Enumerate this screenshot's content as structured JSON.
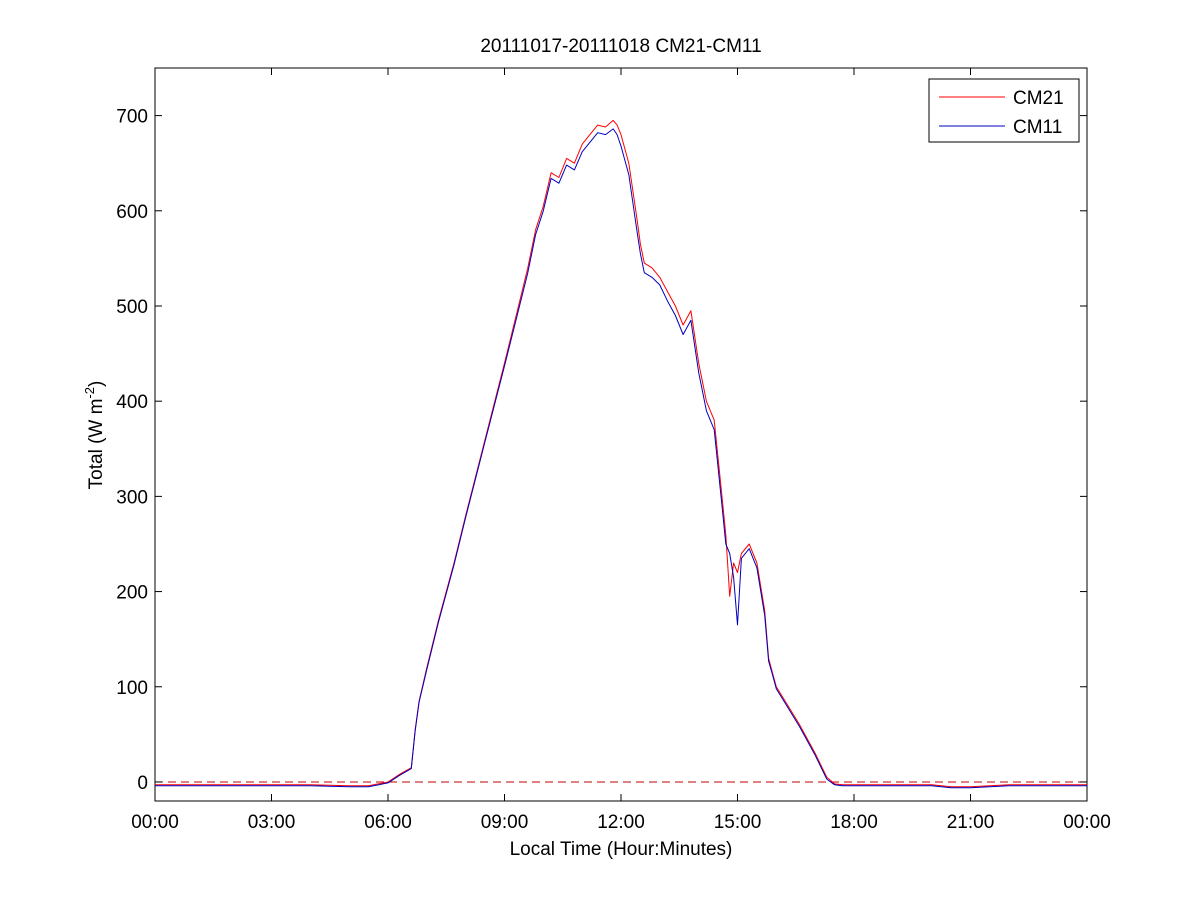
{
  "figure": {
    "title": "20111017-20111018 CM21-CM11",
    "xlabel": "Local Time (Hour:Minutes)",
    "ylabel_main": "Total (W m",
    "ylabel_sup": "-2",
    "ylabel_close": ")"
  },
  "chart_data": {
    "type": "line",
    "title": "20111017-20111018 CM21-CM11",
    "xlabel": "Local Time (Hour:Minutes)",
    "ylabel": "Total (W m-2)",
    "x_unit": "hours",
    "xlim": [
      0,
      24
    ],
    "ylim": [
      -20,
      750
    ],
    "xticks": [
      0,
      3,
      6,
      9,
      12,
      15,
      18,
      21,
      24
    ],
    "xtick_labels": [
      "00:00",
      "03:00",
      "06:00",
      "09:00",
      "12:00",
      "15:00",
      "18:00",
      "21:00",
      "00:00"
    ],
    "yticks": [
      0,
      100,
      200,
      300,
      400,
      500,
      600,
      700
    ],
    "ytick_labels": [
      "0",
      "100",
      "200",
      "300",
      "400",
      "500",
      "600",
      "700"
    ],
    "grid": false,
    "legend_position": "top-right",
    "reference_line": {
      "y": 0,
      "style": "dashed",
      "color": "#c00000"
    },
    "series": [
      {
        "name": "CM21",
        "color": "#ff0000",
        "x": [
          0,
          1,
          2,
          3,
          4,
          5,
          5.5,
          6,
          6.3,
          6.6,
          6.7,
          6.8,
          7,
          7.3,
          7.7,
          8,
          8.5,
          9,
          9.3,
          9.6,
          9.8,
          10,
          10.2,
          10.4,
          10.6,
          10.8,
          11,
          11.2,
          11.4,
          11.6,
          11.8,
          11.9,
          12.0,
          12.2,
          12.4,
          12.5,
          12.6,
          12.8,
          13.0,
          13.2,
          13.4,
          13.6,
          13.8,
          14.0,
          14.2,
          14.4,
          14.6,
          14.7,
          14.8,
          14.9,
          15.0,
          15.1,
          15.3,
          15.5,
          15.7,
          15.8,
          15.9,
          16.0,
          16.3,
          16.6,
          17.0,
          17.3,
          17.5,
          17.7,
          18,
          19,
          20,
          20.5,
          21,
          22,
          23,
          24
        ],
        "y": [
          -3,
          -3,
          -3,
          -3,
          -3,
          -4,
          -4,
          0,
          8,
          15,
          55,
          85,
          120,
          170,
          230,
          280,
          360,
          440,
          490,
          540,
          580,
          605,
          640,
          635,
          655,
          650,
          670,
          680,
          690,
          688,
          695,
          690,
          680,
          650,
          595,
          565,
          545,
          540,
          530,
          515,
          500,
          480,
          495,
          440,
          400,
          380,
          300,
          260,
          195,
          230,
          220,
          240,
          250,
          230,
          180,
          130,
          115,
          100,
          80,
          60,
          30,
          5,
          -2,
          -3,
          -3,
          -3,
          -3,
          -5,
          -5,
          -3,
          -3,
          -3
        ]
      },
      {
        "name": "CM11",
        "color": "#0000c0",
        "x": [
          0,
          1,
          2,
          3,
          4,
          5,
          5.5,
          6,
          6.3,
          6.6,
          6.7,
          6.8,
          7,
          7.3,
          7.7,
          8,
          8.5,
          9,
          9.3,
          9.6,
          9.8,
          10,
          10.2,
          10.4,
          10.6,
          10.8,
          11,
          11.2,
          11.4,
          11.6,
          11.8,
          11.9,
          12.0,
          12.2,
          12.4,
          12.5,
          12.6,
          12.8,
          13.0,
          13.2,
          13.4,
          13.6,
          13.8,
          14.0,
          14.2,
          14.4,
          14.6,
          14.7,
          14.8,
          14.9,
          15.0,
          15.1,
          15.3,
          15.5,
          15.7,
          15.8,
          15.9,
          16.0,
          16.3,
          16.6,
          17.0,
          17.3,
          17.5,
          17.7,
          18,
          19,
          20,
          20.5,
          21,
          22,
          23,
          24
        ],
        "y": [
          -4,
          -4,
          -4,
          -4,
          -4,
          -5,
          -5,
          -1,
          7,
          14,
          54,
          84,
          118,
          168,
          228,
          278,
          358,
          437,
          486,
          535,
          575,
          600,
          634,
          629,
          648,
          643,
          662,
          672,
          682,
          680,
          686,
          680,
          668,
          638,
          582,
          555,
          535,
          530,
          522,
          505,
          490,
          470,
          485,
          430,
          390,
          370,
          290,
          250,
          240,
          215,
          165,
          235,
          245,
          225,
          175,
          127,
          113,
          98,
          78,
          58,
          28,
          3,
          -3,
          -4,
          -4,
          -4,
          -4,
          -6,
          -6,
          -4,
          -4,
          -4
        ]
      }
    ]
  }
}
